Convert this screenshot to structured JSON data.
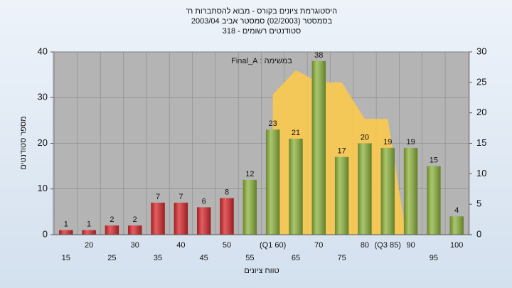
{
  "chart_data": {
    "type": "bar",
    "title": "היסטוגרמת ציונים בקורס - מבוא להסתברות ח'",
    "subtitle": [
      "בסמסטר (02/2003) סמסטר אביב 2003/04",
      "סטודנטים רשומים - 318"
    ],
    "annotation": "במשימה : Final_A",
    "x_label": "טווח ציונים",
    "y_label": "מספר סטודנטים",
    "categories": [
      "15",
      "20",
      "25",
      "30",
      "35",
      "40",
      "45",
      "50",
      "55",
      "(Q1 60)",
      "65",
      "70",
      "75",
      "80",
      "(Q3 85)",
      "90",
      "95",
      "100"
    ],
    "series": [
      {
        "values": [
          1,
          1,
          2,
          2,
          7,
          7,
          6,
          8,
          12,
          23,
          21,
          38,
          17,
          20,
          19,
          19,
          15,
          4
        ],
        "colors": [
          "#d8272b",
          "#d8272b",
          "#d8272b",
          "#d8272b",
          "#d8272b",
          "#d8272b",
          "#d8272b",
          "#d8272b",
          "#8db43c",
          "#8db43c",
          "#8db43c",
          "#8db43c",
          "#8db43c",
          "#8db43c",
          "#8db43c",
          "#8db43c",
          "#8db43c",
          "#8db43c"
        ]
      },
      {
        "type": "area",
        "axis": "y2",
        "color": "#fbc94f",
        "values": [
          null,
          null,
          null,
          null,
          null,
          null,
          null,
          null,
          null,
          23,
          27,
          25,
          25,
          19,
          19,
          null,
          null,
          null
        ]
      }
    ],
    "ylim": [
      0,
      40
    ],
    "yticks": [
      0,
      10,
      20,
      30,
      40
    ],
    "y2lim": [
      0,
      30
    ],
    "y2ticks": [
      0,
      5,
      10,
      15,
      20,
      25,
      30
    ],
    "grid": true
  }
}
